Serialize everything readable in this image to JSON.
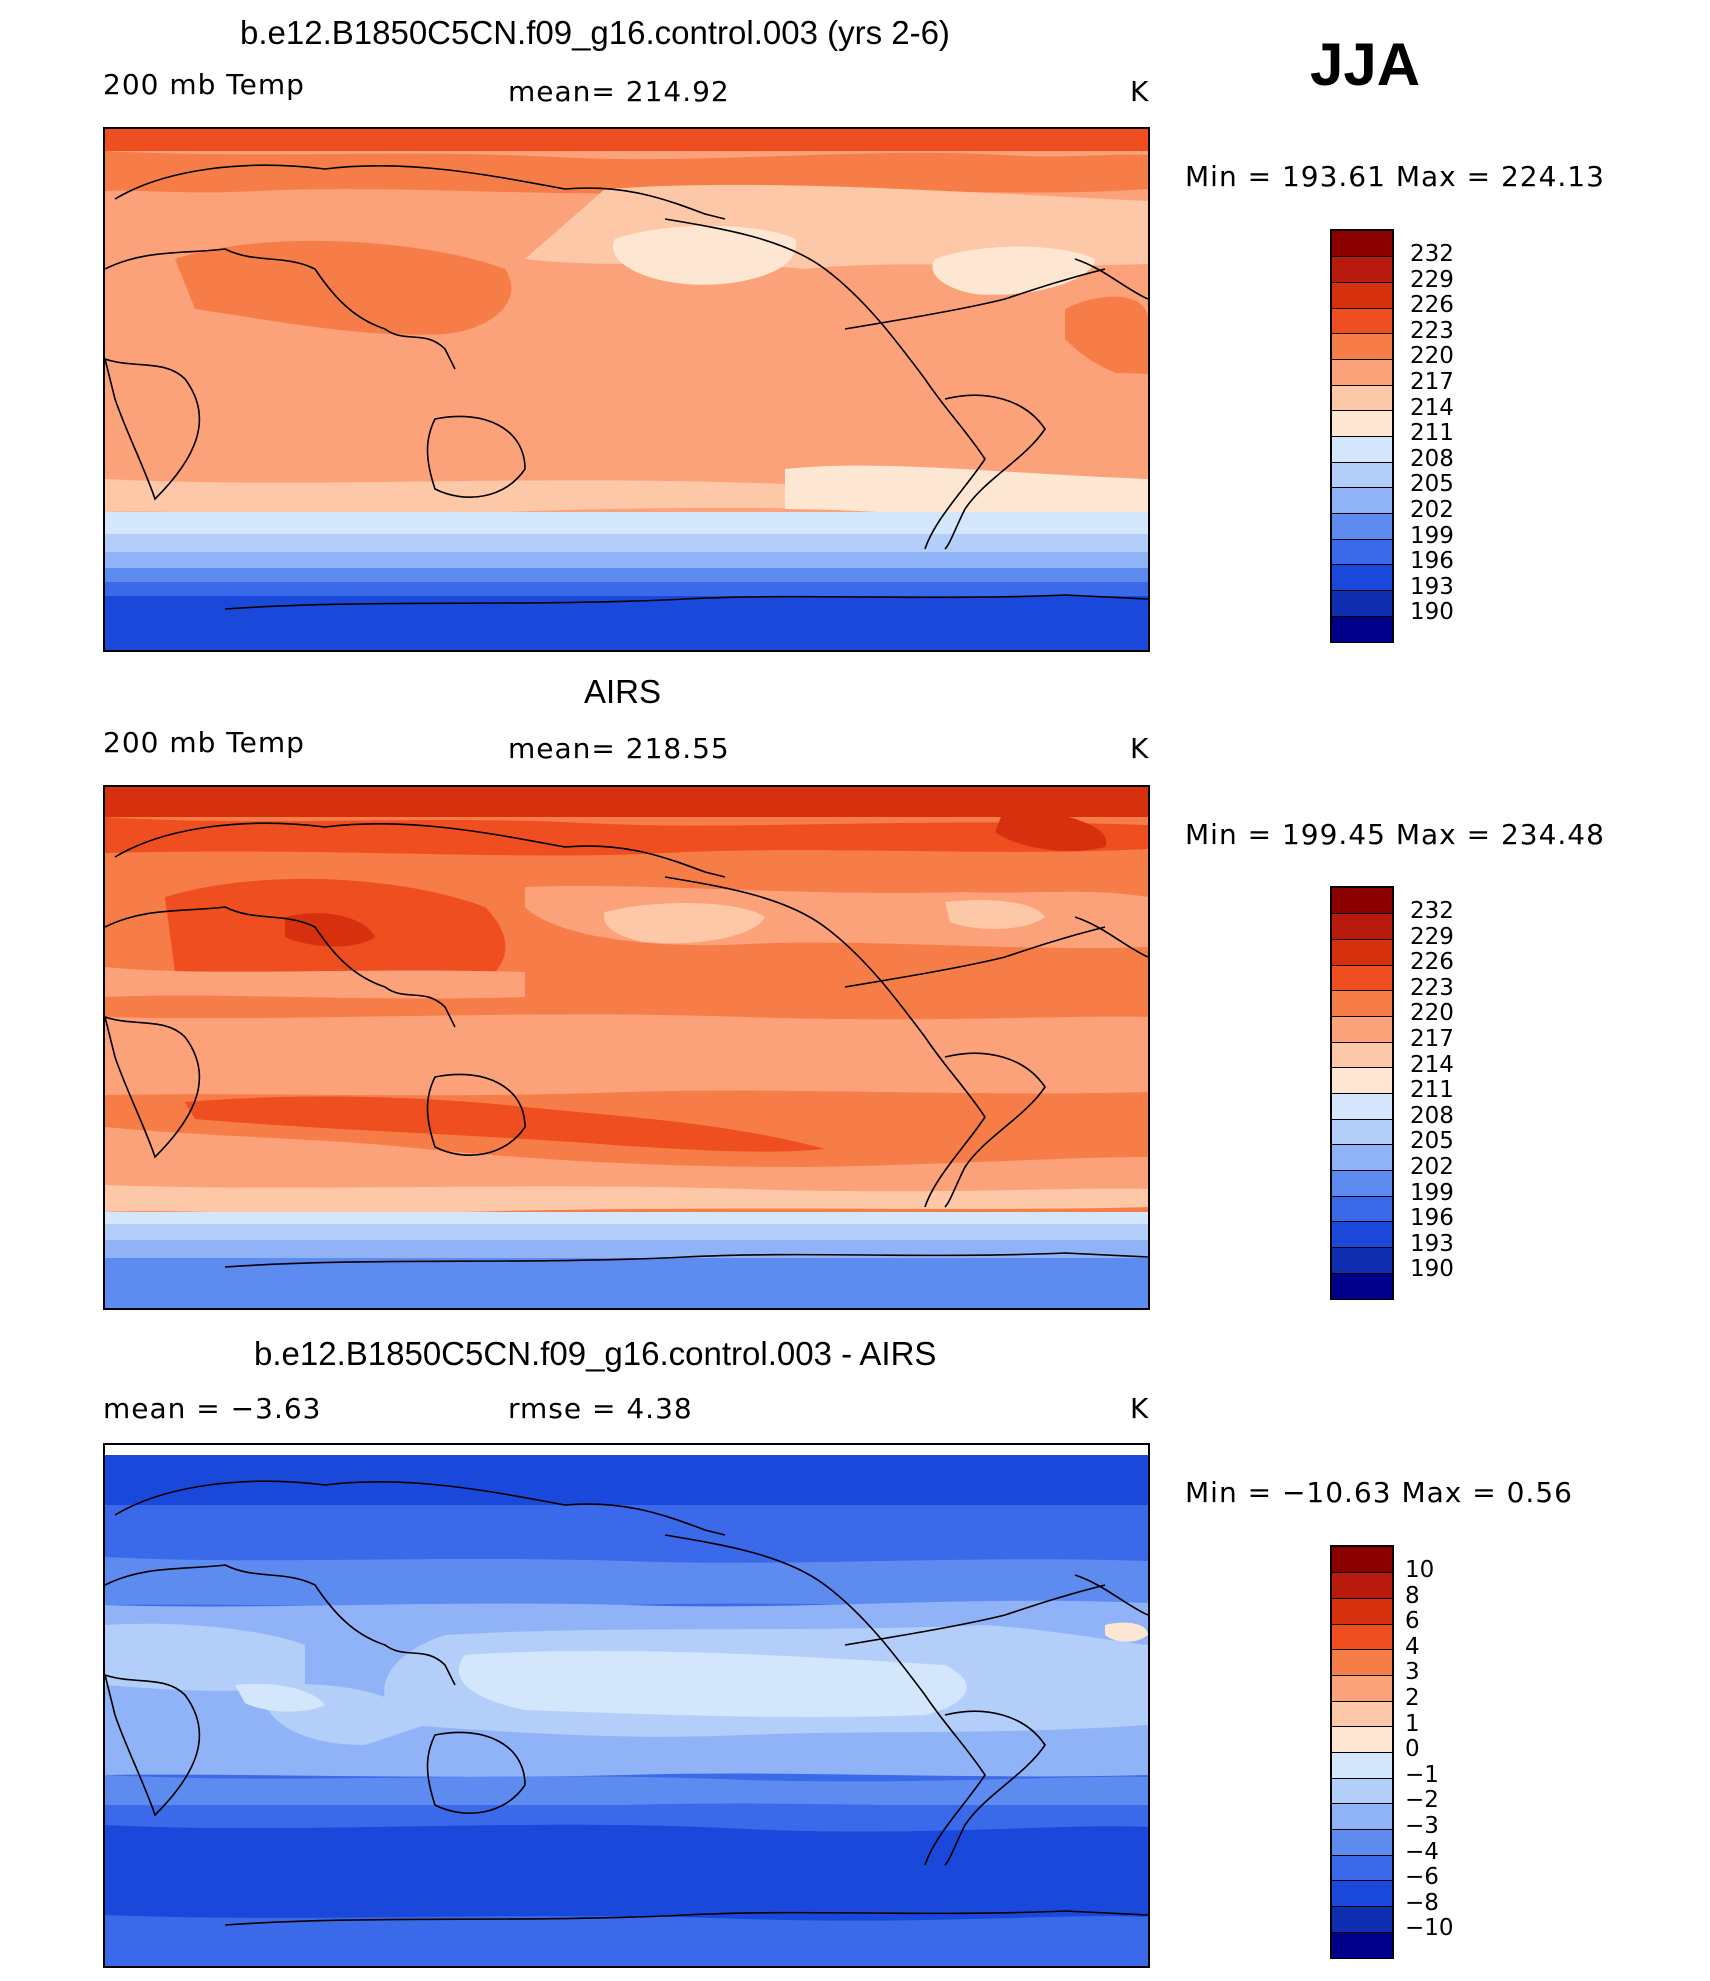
{
  "season": "JJA",
  "panels": [
    {
      "title": "b.e12.B1850C5CN.f09_g16.control.003 (yrs 2-6)",
      "left_label": "200 mb Temp",
      "center_label": "mean=  214.92",
      "units": "K",
      "stats": "Min  =  193.61  Max  =  224.13",
      "colorbar_labels": [
        "232",
        "229",
        "226",
        "223",
        "220",
        "217",
        "214",
        "211",
        "208",
        "205",
        "202",
        "199",
        "196",
        "193",
        "190"
      ],
      "colorbar_colors": [
        "#8b0000",
        "#b81a0d",
        "#d7300f",
        "#ef4e20",
        "#f77d48",
        "#fba27b",
        "#fdc8a8",
        "#fde7d2",
        "#d3e6fb",
        "#b4cefa",
        "#90b2f6",
        "#5e8bf0",
        "#3a69ea",
        "#1a48db",
        "#0f2fb0",
        "#00008b"
      ]
    },
    {
      "title": "AIRS",
      "left_label": "200 mb Temp",
      "center_label": "mean=  218.55",
      "units": "K",
      "stats": "Min  =  199.45  Max  =  234.48",
      "colorbar_labels": [
        "232",
        "229",
        "226",
        "223",
        "220",
        "217",
        "214",
        "211",
        "208",
        "205",
        "202",
        "199",
        "196",
        "193",
        "190"
      ],
      "colorbar_colors": [
        "#8b0000",
        "#b81a0d",
        "#d7300f",
        "#ef4e20",
        "#f77d48",
        "#fba27b",
        "#fdc8a8",
        "#fde7d2",
        "#d3e6fb",
        "#b4cefa",
        "#90b2f6",
        "#5e8bf0",
        "#3a69ea",
        "#1a48db",
        "#0f2fb0",
        "#00008b"
      ]
    },
    {
      "title": "b.e12.B1850C5CN.f09_g16.control.003 - AIRS",
      "left_label": "mean =    −3.63",
      "center_label": "rmse =      4.38",
      "units": "K",
      "stats": "Min  =  −10.63  Max  =      0.56",
      "colorbar_labels": [
        "10",
        "8",
        "6",
        "4",
        "3",
        "2",
        "1",
        "0",
        "−1",
        "−2",
        "−3",
        "−4",
        "−6",
        "−8",
        "−10"
      ],
      "colorbar_colors": [
        "#8b0000",
        "#b81a0d",
        "#d7300f",
        "#ef4e20",
        "#f77d48",
        "#fba27b",
        "#fdc8a8",
        "#fde7d2",
        "#d3e6fb",
        "#b4cefa",
        "#90b2f6",
        "#5e8bf0",
        "#3a69ea",
        "#1a48db",
        "#0f2fb0",
        "#00008b"
      ]
    }
  ]
}
